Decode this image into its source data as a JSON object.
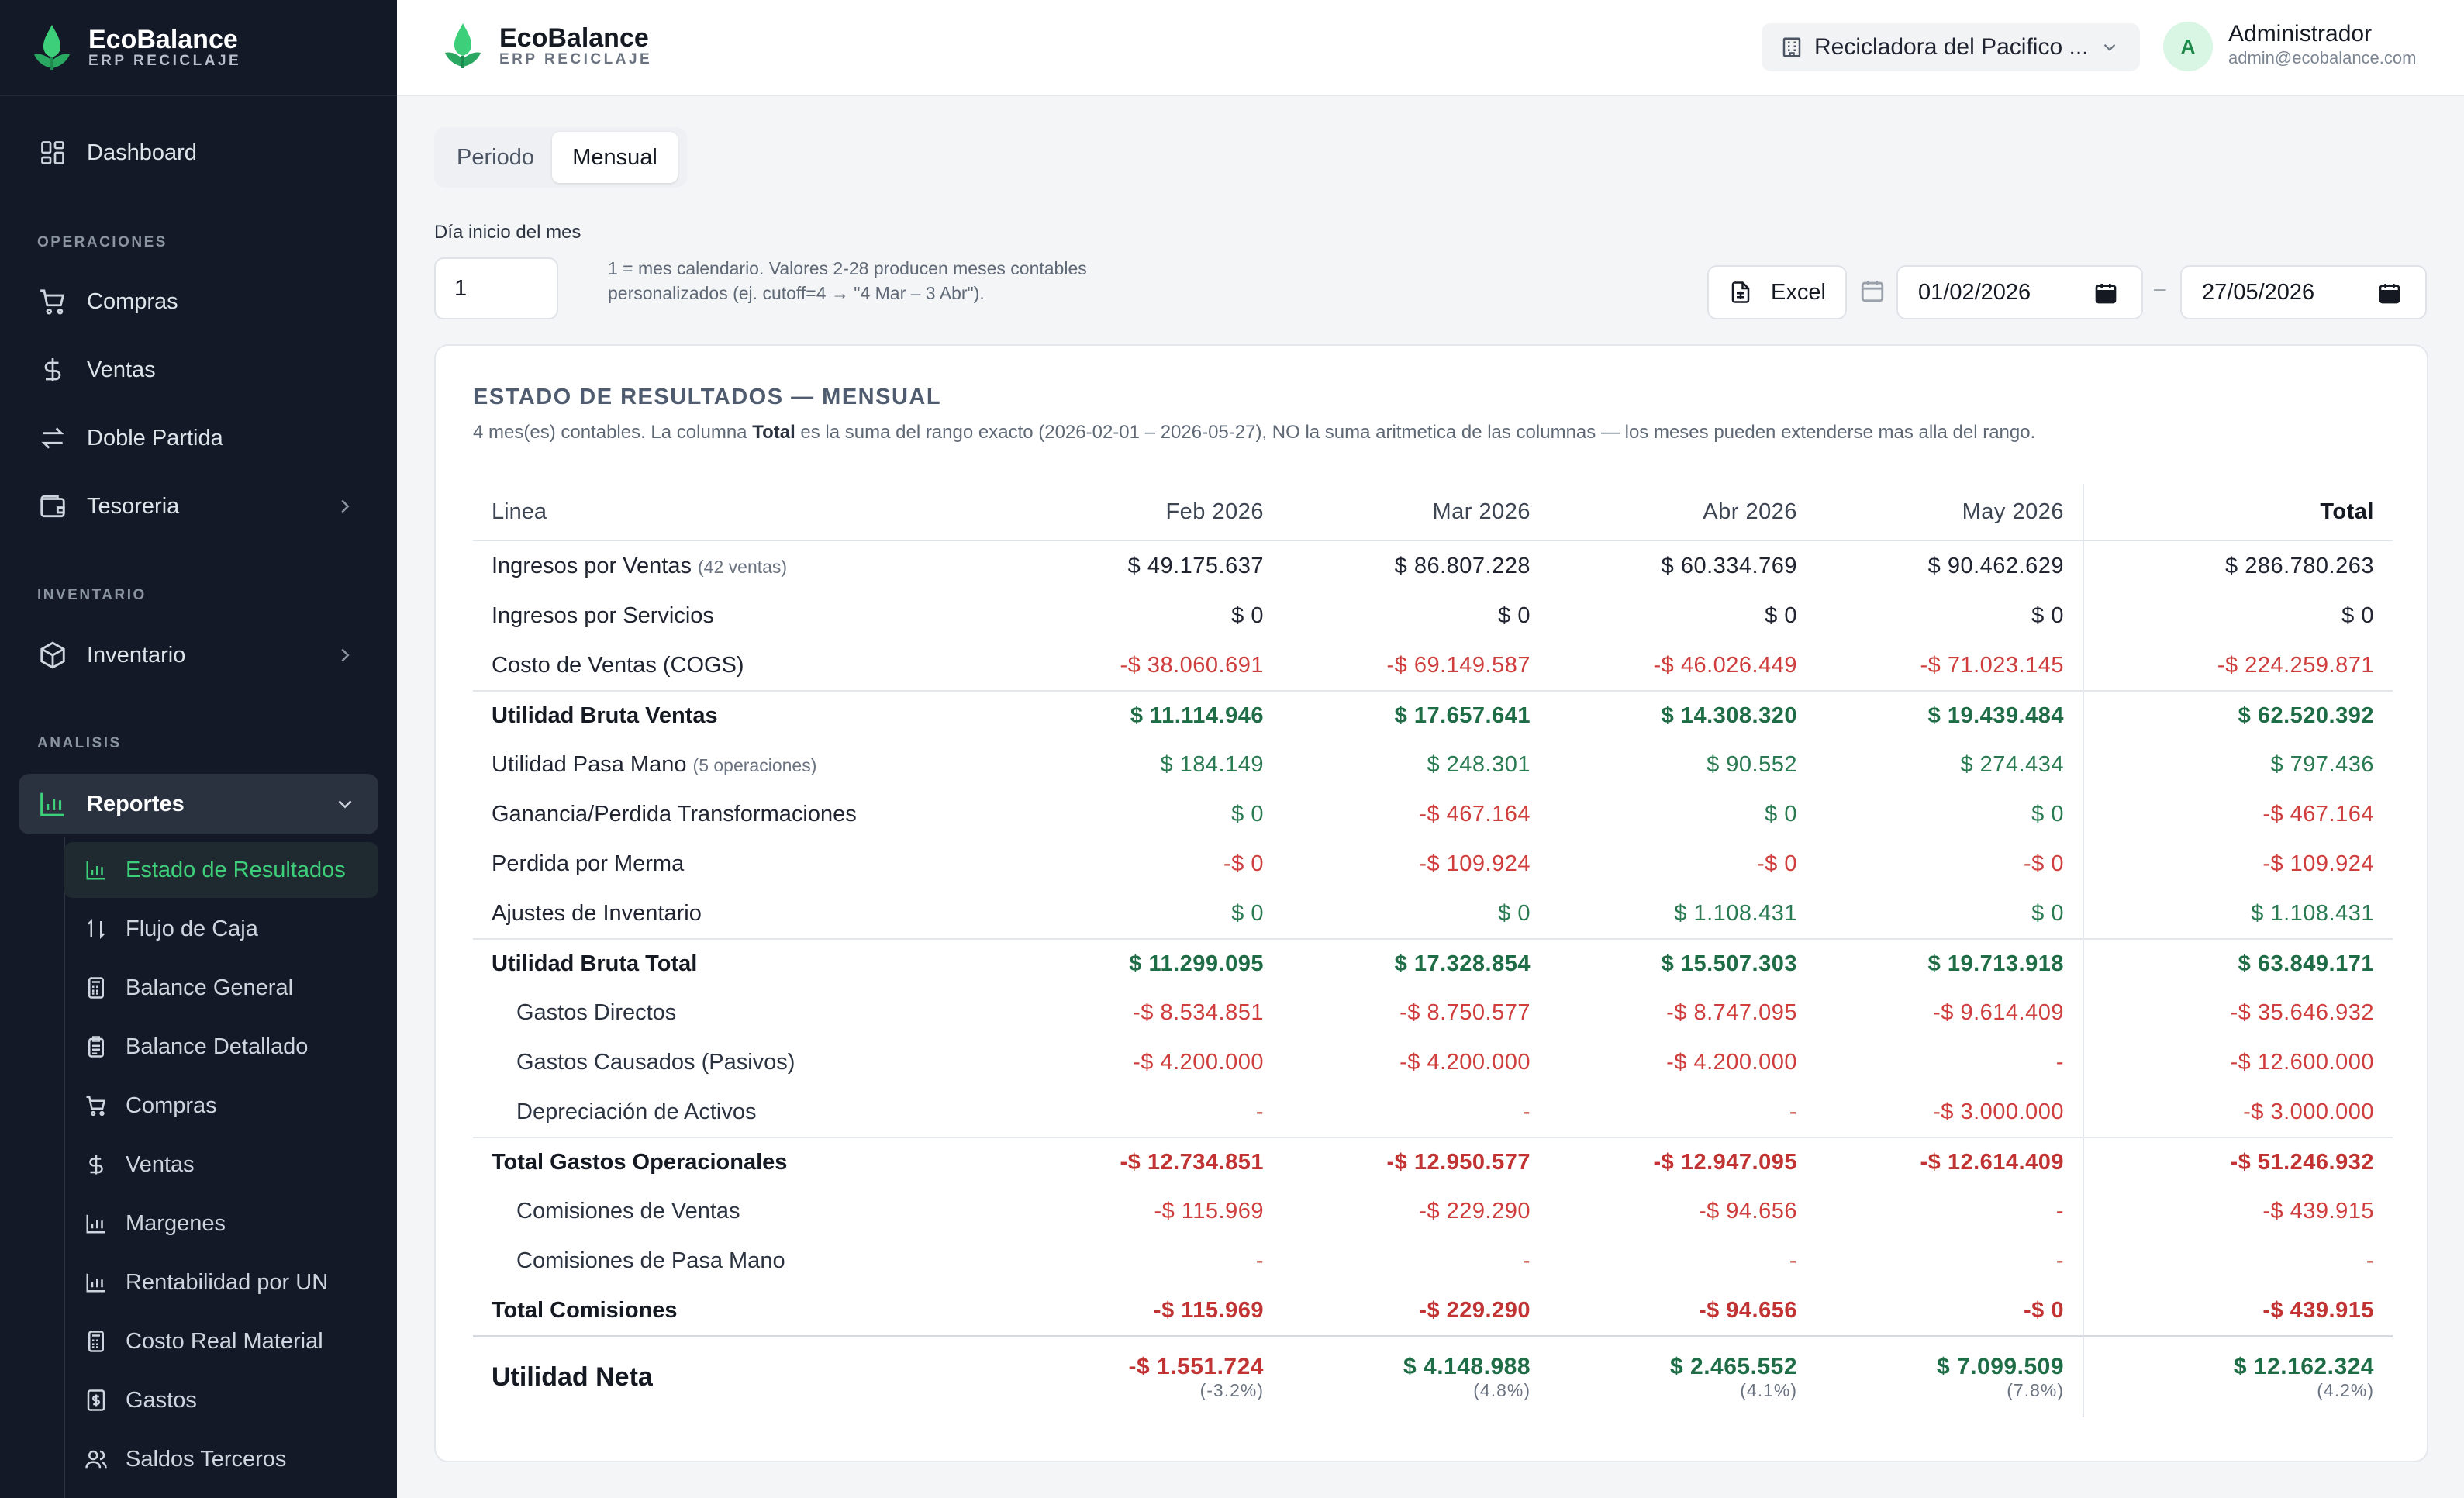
{
  "app": {
    "name": "EcoBalance",
    "subtitle": "ERP RECICLAJE"
  },
  "sidebar": {
    "dashboard": "Dashboard",
    "sections": {
      "operaciones": "OPERACIONES",
      "inventario": "INVENTARIO",
      "analisis": "ANALISIS"
    },
    "compras": "Compras",
    "ventas": "Ventas",
    "doble_partida": "Doble Partida",
    "tesoreria": "Tesoreria",
    "inventario": "Inventario",
    "reportes": "Reportes",
    "reportes_items": [
      "Estado de Resultados",
      "Flujo de Caja",
      "Balance General",
      "Balance Detallado",
      "Compras",
      "Ventas",
      "Margenes",
      "Rentabilidad por UN",
      "Costo Real Material",
      "Gastos",
      "Saldos Terceros"
    ]
  },
  "header": {
    "company": "Recicladora del Pacifico ...",
    "avatar_initial": "A",
    "user_name": "Administrador",
    "user_email": "admin@ecobalance.com"
  },
  "controls": {
    "tab_periodo": "Periodo",
    "tab_mensual": "Mensual",
    "dia_label": "Día inicio del mes",
    "dia_value": "1",
    "hint_line1": "1 = mes calendario. Valores 2-28 producen meses contables",
    "hint_line2": "personalizados (ej. cutoff=4 → \"4 Mar – 3 Abr\").",
    "excel": "Excel",
    "date_from": "01/02/2026",
    "date_sep": "–",
    "date_to": "27/05/2026"
  },
  "report": {
    "title": "ESTADO DE RESULTADOS — MENSUAL",
    "desc_pre": "4 mes(es) contables. La columna ",
    "desc_bold": "Total",
    "desc_post": " es la suma del rango exacto (2026-02-01 – 2026-05-27), NO la suma aritmetica de las columnas — los meses pueden extenderse mas alla del rango.",
    "columns": [
      "Linea",
      "Feb 2026",
      "Mar 2026",
      "Abr 2026",
      "May 2026",
      "Total"
    ],
    "rows": [
      {
        "label": "Ingresos por Ventas",
        "note": "(42 ventas)",
        "values": [
          "$ 49.175.637",
          "$ 86.807.228",
          "$ 60.334.769",
          "$ 90.462.629",
          "$ 286.780.263"
        ]
      },
      {
        "label": "Ingresos por Servicios",
        "values": [
          "$ 0",
          "$ 0",
          "$ 0",
          "$ 0",
          "$ 0"
        ]
      },
      {
        "label": "Costo de Ventas (COGS)",
        "values": [
          "-$ 38.060.691",
          "-$ 69.149.587",
          "-$ 46.026.449",
          "-$ 71.023.145",
          "-$ 224.259.871"
        ]
      },
      {
        "label": "Utilidad Bruta Ventas",
        "values": [
          "$ 11.114.946",
          "$ 17.657.641",
          "$ 14.308.320",
          "$ 19.439.484",
          "$ 62.520.392"
        ]
      },
      {
        "label": "Utilidad Pasa Mano",
        "note": "(5 operaciones)",
        "values": [
          "$ 184.149",
          "$ 248.301",
          "$ 90.552",
          "$ 274.434",
          "$ 797.436"
        ]
      },
      {
        "label": "Ganancia/Perdida Transformaciones",
        "values": [
          "$ 0",
          "-$ 467.164",
          "$ 0",
          "$ 0",
          "-$ 467.164"
        ]
      },
      {
        "label": "Perdida por Merma",
        "values": [
          "-$ 0",
          "-$ 109.924",
          "-$ 0",
          "-$ 0",
          "-$ 109.924"
        ]
      },
      {
        "label": "Ajustes de Inventario",
        "values": [
          "$ 0",
          "$ 0",
          "$ 1.108.431",
          "$ 0",
          "$ 1.108.431"
        ]
      },
      {
        "label": "Utilidad Bruta Total",
        "values": [
          "$ 11.299.095",
          "$ 17.328.854",
          "$ 15.507.303",
          "$ 19.713.918",
          "$ 63.849.171"
        ]
      },
      {
        "label": "Gastos Directos",
        "values": [
          "-$ 8.534.851",
          "-$ 8.750.577",
          "-$ 8.747.095",
          "-$ 9.614.409",
          "-$ 35.646.932"
        ]
      },
      {
        "label": "Gastos Causados (Pasivos)",
        "values": [
          "-$ 4.200.000",
          "-$ 4.200.000",
          "-$ 4.200.000",
          "-",
          "-$ 12.600.000"
        ]
      },
      {
        "label": "Depreciación de Activos",
        "values": [
          "-",
          "-",
          "-",
          "-$ 3.000.000",
          "-$ 3.000.000"
        ]
      },
      {
        "label": "Total Gastos Operacionales",
        "values": [
          "-$ 12.734.851",
          "-$ 12.950.577",
          "-$ 12.947.095",
          "-$ 12.614.409",
          "-$ 51.246.932"
        ]
      },
      {
        "label": "Comisiones de Ventas",
        "values": [
          "-$ 115.969",
          "-$ 229.290",
          "-$ 94.656",
          "-",
          "-$ 439.915"
        ]
      },
      {
        "label": "Comisiones de Pasa Mano",
        "values": [
          "-",
          "-",
          "-",
          "-",
          "-"
        ]
      },
      {
        "label": "Total Comisiones",
        "values": [
          "-$ 115.969",
          "-$ 229.290",
          "-$ 94.656",
          "-$ 0",
          "-$ 439.915"
        ]
      }
    ],
    "net": {
      "label": "Utilidad Neta",
      "values": [
        "-$ 1.551.724",
        "$ 4.148.988",
        "$ 2.465.552",
        "$ 7.099.509",
        "$ 12.162.324"
      ],
      "pcts": [
        "(-3.2%)",
        "(4.8%)",
        "(4.1%)",
        "(7.8%)",
        "(4.2%)"
      ]
    }
  },
  "colors": {
    "accent": "#3ecf7a",
    "positive": "#2a7a52",
    "negative": "#cf3d3d",
    "sidebar_bg": "#131926"
  }
}
